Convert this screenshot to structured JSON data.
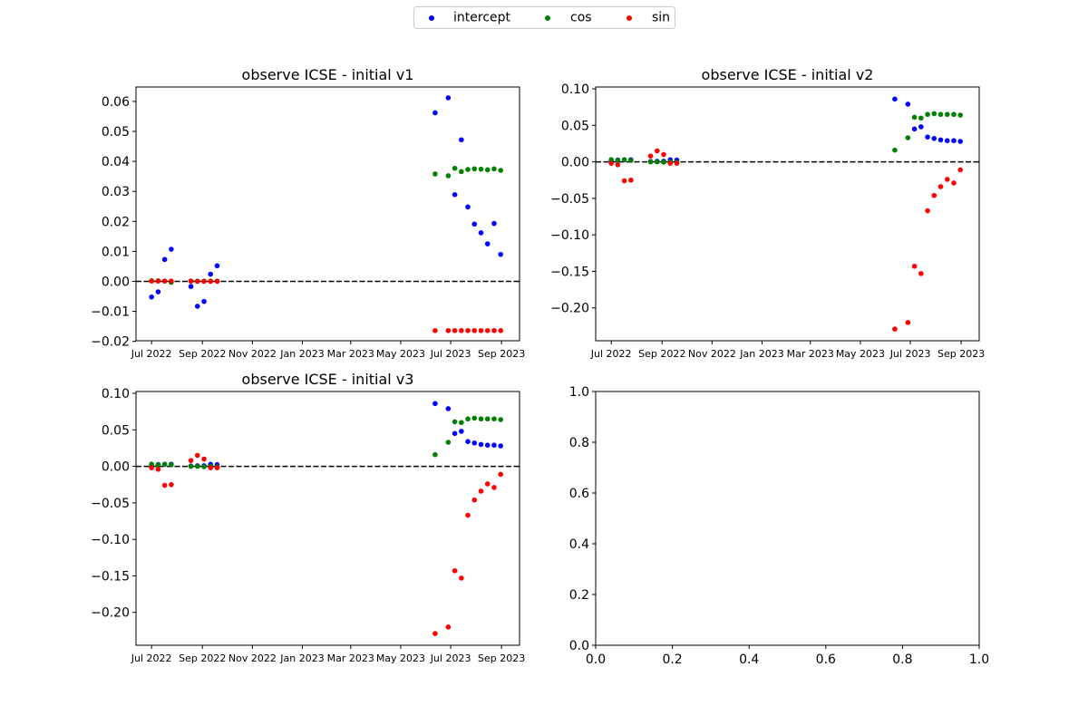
{
  "legend": {
    "placement": "top-center",
    "entries": [
      {
        "label": "intercept",
        "color": "#0000ff"
      },
      {
        "label": "cos",
        "color": "#008000"
      },
      {
        "label": "sin",
        "color": "#ff0000"
      }
    ]
  },
  "chart_data": [
    {
      "type": "scatter",
      "title": "observe ICSE - initial v1",
      "xlim": [
        "2022-06-12",
        "2023-09-23"
      ],
      "ylim": [
        -0.0198,
        0.0648
      ],
      "x_ticks": [
        "2022-07-01",
        "2022-09-01",
        "2022-11-01",
        "2023-01-01",
        "2023-03-01",
        "2023-05-01",
        "2023-07-01",
        "2023-09-01"
      ],
      "x_tick_labels": [
        "Jul 2022",
        "Sep 2022",
        "Nov 2022",
        "Jan 2023",
        "Mar 2023",
        "May 2023",
        "Jul 2023",
        "Sep 2023"
      ],
      "y_ticks": [
        -0.02,
        -0.01,
        0.0,
        0.01,
        0.02,
        0.03,
        0.04,
        0.05,
        0.06
      ],
      "y_tick_labels": [
        "−0.02",
        "−0.01",
        "0.00",
        "0.01",
        "0.02",
        "0.03",
        "0.04",
        "0.05",
        "0.06"
      ],
      "reference_line": {
        "y": 0,
        "style": "dashed",
        "color": "#000000"
      },
      "series": [
        {
          "name": "intercept",
          "color": "#0000ff",
          "points": [
            [
              "2022-07-01",
              -0.0052
            ],
            [
              "2022-07-09",
              -0.0035
            ],
            [
              "2022-07-17",
              0.0073
            ],
            [
              "2022-07-25",
              0.0107
            ],
            [
              "2022-08-18",
              -0.0017
            ],
            [
              "2022-08-26",
              -0.0083
            ],
            [
              "2022-09-03",
              -0.0067
            ],
            [
              "2022-09-11",
              0.0024
            ],
            [
              "2022-09-19",
              0.0052
            ],
            [
              "2023-06-12",
              0.0562
            ],
            [
              "2023-06-28",
              0.0612
            ],
            [
              "2023-07-06",
              0.0289
            ],
            [
              "2023-07-14",
              0.0472
            ],
            [
              "2023-07-22",
              0.0248
            ],
            [
              "2023-07-30",
              0.0191
            ],
            [
              "2023-08-07",
              0.0162
            ],
            [
              "2023-08-15",
              0.0125
            ],
            [
              "2023-08-23",
              0.0193
            ],
            [
              "2023-08-31",
              0.009
            ]
          ]
        },
        {
          "name": "cos",
          "color": "#008000",
          "points": [
            [
              "2022-07-01",
              0.0002
            ],
            [
              "2022-07-09",
              0.0002
            ],
            [
              "2022-07-17",
              0.0001
            ],
            [
              "2022-07-25",
              -0.0003
            ],
            [
              "2022-08-18",
              0.0001
            ],
            [
              "2022-08-26",
              0.0001
            ],
            [
              "2022-09-03",
              0.0001
            ],
            [
              "2022-09-11",
              0.0001
            ],
            [
              "2022-09-19",
              0.0001
            ],
            [
              "2023-06-12",
              0.0358
            ],
            [
              "2023-06-28",
              0.0352
            ],
            [
              "2023-07-06",
              0.0377
            ],
            [
              "2023-07-14",
              0.0366
            ],
            [
              "2023-07-22",
              0.0373
            ],
            [
              "2023-07-30",
              0.0375
            ],
            [
              "2023-08-07",
              0.0374
            ],
            [
              "2023-08-15",
              0.0372
            ],
            [
              "2023-08-23",
              0.0375
            ],
            [
              "2023-08-31",
              0.037
            ]
          ]
        },
        {
          "name": "sin",
          "color": "#ff0000",
          "points": [
            [
              "2022-07-01",
              0.0001
            ],
            [
              "2022-07-09",
              0.0001
            ],
            [
              "2022-07-17",
              0.0001
            ],
            [
              "2022-07-25",
              0.0001
            ],
            [
              "2022-08-18",
              0.0001
            ],
            [
              "2022-08-26",
              0.0
            ],
            [
              "2022-09-03",
              0.0
            ],
            [
              "2022-09-11",
              0.0
            ],
            [
              "2022-09-19",
              0.0
            ],
            [
              "2023-06-12",
              -0.0164
            ],
            [
              "2023-06-28",
              -0.0164
            ],
            [
              "2023-07-06",
              -0.0164
            ],
            [
              "2023-07-14",
              -0.0164
            ],
            [
              "2023-07-22",
              -0.0164
            ],
            [
              "2023-07-30",
              -0.0164
            ],
            [
              "2023-08-07",
              -0.0164
            ],
            [
              "2023-08-15",
              -0.0164
            ],
            [
              "2023-08-23",
              -0.0164
            ],
            [
              "2023-08-31",
              -0.0164
            ]
          ]
        }
      ]
    },
    {
      "type": "scatter",
      "title": "observe ICSE - initial v2",
      "xlim": [
        "2022-06-12",
        "2023-09-23"
      ],
      "ylim": [
        -0.245,
        0.1025
      ],
      "x_ticks": [
        "2022-07-01",
        "2022-09-01",
        "2022-11-01",
        "2023-01-01",
        "2023-03-01",
        "2023-05-01",
        "2023-07-01",
        "2023-09-01"
      ],
      "x_tick_labels": [
        "Jul 2022",
        "Sep 2022",
        "Nov 2022",
        "Jan 2023",
        "Mar 2023",
        "May 2023",
        "Jul 2023",
        "Sep 2023"
      ],
      "y_ticks": [
        -0.2,
        -0.15,
        -0.1,
        -0.05,
        0.0,
        0.05,
        0.1
      ],
      "y_tick_labels": [
        "−0.20",
        "−0.15",
        "−0.10",
        "−0.05",
        "0.00",
        "0.05",
        "0.10"
      ],
      "reference_line": {
        "y": 0,
        "style": "dashed",
        "color": "#000000"
      },
      "series": [
        {
          "name": "intercept",
          "color": "#0000ff",
          "points": [
            [
              "2022-07-01",
              0.0023
            ],
            [
              "2022-07-09",
              0.0025
            ],
            [
              "2022-07-17",
              0.0028
            ],
            [
              "2022-07-25",
              0.0029
            ],
            [
              "2022-08-18",
              0.0005
            ],
            [
              "2022-08-26",
              0.0008
            ],
            [
              "2022-09-03",
              0.0008
            ],
            [
              "2022-09-11",
              0.0028
            ],
            [
              "2022-09-19",
              0.0024
            ],
            [
              "2023-06-12",
              0.086
            ],
            [
              "2023-06-28",
              0.079
            ],
            [
              "2023-07-06",
              0.045
            ],
            [
              "2023-07-14",
              0.048
            ],
            [
              "2023-07-22",
              0.034
            ],
            [
              "2023-07-30",
              0.032
            ],
            [
              "2023-08-07",
              0.03
            ],
            [
              "2023-08-15",
              0.029
            ],
            [
              "2023-08-23",
              0.029
            ],
            [
              "2023-08-31",
              0.028
            ]
          ]
        },
        {
          "name": "cos",
          "color": "#008000",
          "points": [
            [
              "2022-07-01",
              0.003
            ],
            [
              "2022-07-09",
              0.002
            ],
            [
              "2022-07-17",
              0.003
            ],
            [
              "2022-07-25",
              0.002
            ],
            [
              "2022-08-18",
              0.0
            ],
            [
              "2022-08-26",
              0.0
            ],
            [
              "2022-09-03",
              -0.0005
            ],
            [
              "2022-09-11",
              0.0
            ],
            [
              "2022-09-19",
              -0.0005
            ],
            [
              "2023-06-12",
              0.016
            ],
            [
              "2023-06-28",
              0.033
            ],
            [
              "2023-07-06",
              0.061
            ],
            [
              "2023-07-14",
              0.06
            ],
            [
              "2023-07-22",
              0.065
            ],
            [
              "2023-07-30",
              0.066
            ],
            [
              "2023-08-07",
              0.065
            ],
            [
              "2023-08-15",
              0.065
            ],
            [
              "2023-08-23",
              0.065
            ],
            [
              "2023-08-31",
              0.064
            ]
          ]
        },
        {
          "name": "sin",
          "color": "#ff0000",
          "points": [
            [
              "2022-07-01",
              -0.002
            ],
            [
              "2022-07-09",
              -0.004
            ],
            [
              "2022-07-17",
              -0.026
            ],
            [
              "2022-07-25",
              -0.025
            ],
            [
              "2022-08-18",
              0.008
            ],
            [
              "2022-08-26",
              0.015
            ],
            [
              "2022-09-03",
              0.01
            ],
            [
              "2022-09-11",
              -0.002
            ],
            [
              "2022-09-19",
              -0.002
            ],
            [
              "2023-06-12",
              -0.229
            ],
            [
              "2023-06-28",
              -0.22
            ],
            [
              "2023-07-06",
              -0.143
            ],
            [
              "2023-07-14",
              -0.153
            ],
            [
              "2023-07-22",
              -0.067
            ],
            [
              "2023-07-30",
              -0.046
            ],
            [
              "2023-08-07",
              -0.034
            ],
            [
              "2023-08-15",
              -0.024
            ],
            [
              "2023-08-23",
              -0.029
            ],
            [
              "2023-08-31",
              -0.011
            ]
          ]
        }
      ]
    },
    {
      "type": "scatter",
      "title": "observe ICSE - initial v3",
      "xlim": [
        "2022-06-12",
        "2023-09-23"
      ],
      "ylim": [
        -0.245,
        0.1025
      ],
      "x_ticks": [
        "2022-07-01",
        "2022-09-01",
        "2022-11-01",
        "2023-01-01",
        "2023-03-01",
        "2023-05-01",
        "2023-07-01",
        "2023-09-01"
      ],
      "x_tick_labels": [
        "Jul 2022",
        "Sep 2022",
        "Nov 2022",
        "Jan 2023",
        "Mar 2023",
        "May 2023",
        "Jul 2023",
        "Sep 2023"
      ],
      "y_ticks": [
        -0.2,
        -0.15,
        -0.1,
        -0.05,
        0.0,
        0.05,
        0.1
      ],
      "y_tick_labels": [
        "−0.20",
        "−0.15",
        "−0.10",
        "−0.05",
        "0.00",
        "0.05",
        "0.10"
      ],
      "reference_line": {
        "y": 0,
        "style": "dashed",
        "color": "#000000"
      },
      "series": [
        {
          "name": "intercept",
          "color": "#0000ff",
          "points": [
            [
              "2022-07-01",
              0.0023
            ],
            [
              "2022-07-09",
              0.0025
            ],
            [
              "2022-07-17",
              0.0028
            ],
            [
              "2022-07-25",
              0.0029
            ],
            [
              "2022-08-18",
              0.0005
            ],
            [
              "2022-08-26",
              0.0008
            ],
            [
              "2022-09-03",
              0.0008
            ],
            [
              "2022-09-11",
              0.0028
            ],
            [
              "2022-09-19",
              0.0024
            ],
            [
              "2023-06-12",
              0.086
            ],
            [
              "2023-06-28",
              0.079
            ],
            [
              "2023-07-06",
              0.045
            ],
            [
              "2023-07-14",
              0.048
            ],
            [
              "2023-07-22",
              0.034
            ],
            [
              "2023-07-30",
              0.032
            ],
            [
              "2023-08-07",
              0.03
            ],
            [
              "2023-08-15",
              0.029
            ],
            [
              "2023-08-23",
              0.029
            ],
            [
              "2023-08-31",
              0.028
            ]
          ]
        },
        {
          "name": "cos",
          "color": "#008000",
          "points": [
            [
              "2022-07-01",
              0.003
            ],
            [
              "2022-07-09",
              0.002
            ],
            [
              "2022-07-17",
              0.003
            ],
            [
              "2022-07-25",
              0.002
            ],
            [
              "2022-08-18",
              0.0
            ],
            [
              "2022-08-26",
              0.0
            ],
            [
              "2022-09-03",
              -0.0005
            ],
            [
              "2022-09-11",
              0.0
            ],
            [
              "2022-09-19",
              -0.0005
            ],
            [
              "2023-06-12",
              0.016
            ],
            [
              "2023-06-28",
              0.033
            ],
            [
              "2023-07-06",
              0.061
            ],
            [
              "2023-07-14",
              0.06
            ],
            [
              "2023-07-22",
              0.065
            ],
            [
              "2023-07-30",
              0.066
            ],
            [
              "2023-08-07",
              0.065
            ],
            [
              "2023-08-15",
              0.065
            ],
            [
              "2023-08-23",
              0.065
            ],
            [
              "2023-08-31",
              0.064
            ]
          ]
        },
        {
          "name": "sin",
          "color": "#ff0000",
          "points": [
            [
              "2022-07-01",
              -0.002
            ],
            [
              "2022-07-09",
              -0.004
            ],
            [
              "2022-07-17",
              -0.026
            ],
            [
              "2022-07-25",
              -0.025
            ],
            [
              "2022-08-18",
              0.008
            ],
            [
              "2022-08-26",
              0.015
            ],
            [
              "2022-09-03",
              0.01
            ],
            [
              "2022-09-11",
              -0.002
            ],
            [
              "2022-09-19",
              -0.002
            ],
            [
              "2023-06-12",
              -0.229
            ],
            [
              "2023-06-28",
              -0.22
            ],
            [
              "2023-07-06",
              -0.143
            ],
            [
              "2023-07-14",
              -0.153
            ],
            [
              "2023-07-22",
              -0.067
            ],
            [
              "2023-07-30",
              -0.046
            ],
            [
              "2023-08-07",
              -0.034
            ],
            [
              "2023-08-15",
              -0.024
            ],
            [
              "2023-08-23",
              -0.029
            ],
            [
              "2023-08-31",
              -0.011
            ]
          ]
        }
      ]
    },
    {
      "type": "scatter",
      "title": "",
      "xlim": [
        0.0,
        1.0
      ],
      "ylim": [
        0.0,
        1.0
      ],
      "x_ticks": [
        0.0,
        0.2,
        0.4,
        0.6,
        0.8,
        1.0
      ],
      "x_tick_labels": [
        "0.0",
        "0.2",
        "0.4",
        "0.6",
        "0.8",
        "1.0"
      ],
      "y_ticks": [
        0.0,
        0.2,
        0.4,
        0.6,
        0.8,
        1.0
      ],
      "y_tick_labels": [
        "0.0",
        "0.2",
        "0.4",
        "0.6",
        "0.8",
        "1.0"
      ],
      "series": []
    }
  ]
}
